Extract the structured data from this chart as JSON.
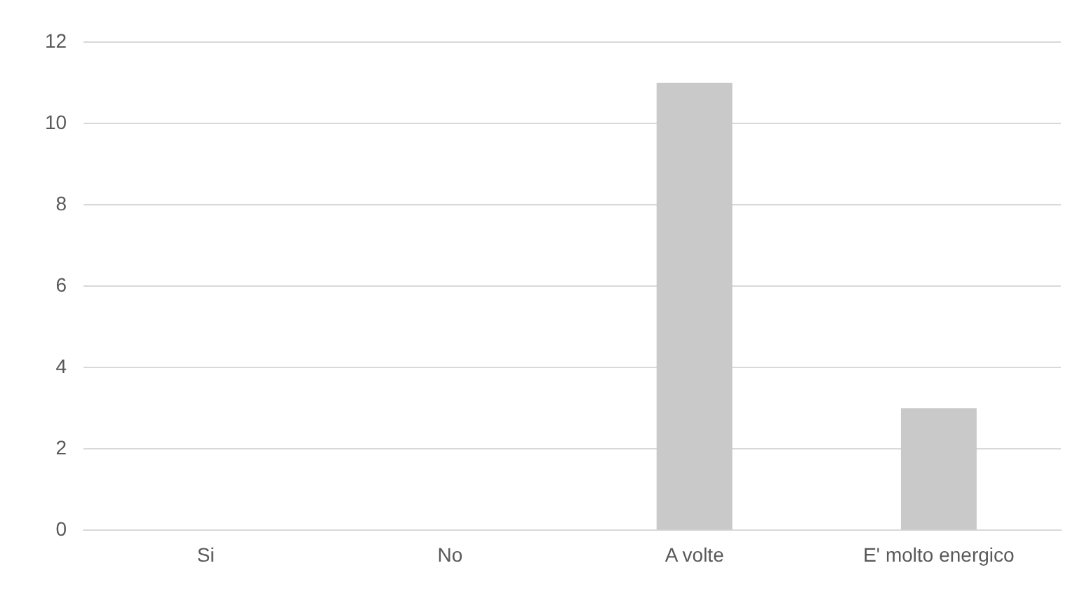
{
  "chart_data": {
    "type": "bar",
    "categories": [
      "Si",
      "No",
      "A volte",
      "E' molto energico"
    ],
    "values": [
      0,
      0,
      11,
      3
    ],
    "color": "#c9c9c9",
    "ylim": [
      0,
      12
    ],
    "yticks": [
      0,
      2,
      4,
      6,
      8,
      10,
      12
    ],
    "grid": "y",
    "legend": false
  }
}
